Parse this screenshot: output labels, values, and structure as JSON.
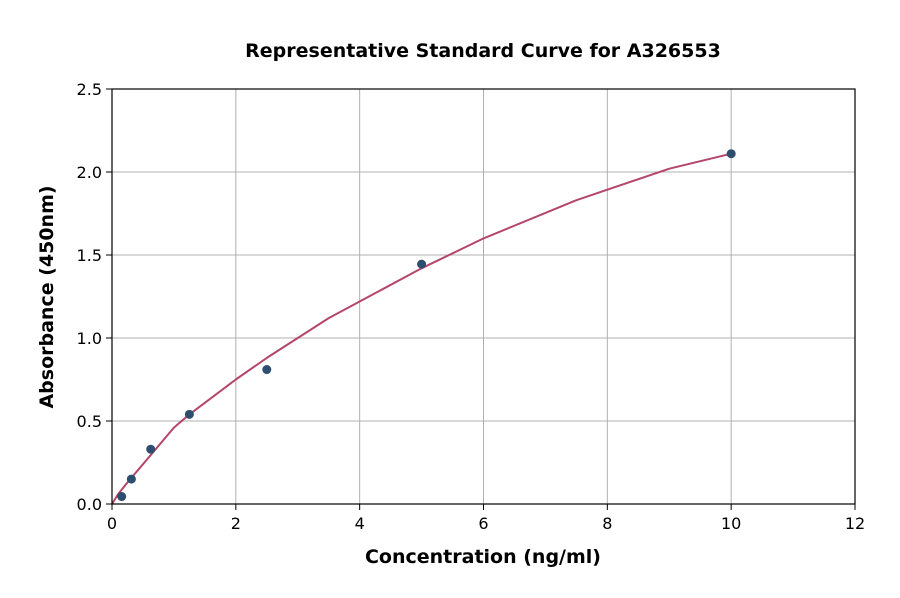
{
  "chart_data": {
    "type": "scatter",
    "title": "Representative Standard Curve for A326553",
    "xlabel": "Concentration (ng/ml)",
    "ylabel": "Absorbance (450nm)",
    "xlim": [
      0,
      12
    ],
    "ylim": [
      0,
      2.5
    ],
    "xticks": [
      "0",
      "2",
      "4",
      "6",
      "8",
      "10",
      "12"
    ],
    "yticks": [
      "0.0",
      "0.5",
      "1.0",
      "1.5",
      "2.0",
      "2.5"
    ],
    "grid": true,
    "points": {
      "x": [
        0.156,
        0.3125,
        0.625,
        1.25,
        2.5,
        5,
        10
      ],
      "y": [
        0.045,
        0.15,
        0.33,
        0.54,
        0.81,
        1.445,
        2.11
      ],
      "color": "#2d4e6e"
    },
    "fit_curve": {
      "x": [
        0,
        0.1,
        0.25,
        0.5,
        1,
        1.25,
        2,
        2.5,
        3.5,
        5,
        6,
        7.5,
        9,
        10
      ],
      "y": [
        0,
        0.06,
        0.13,
        0.24,
        0.46,
        0.54,
        0.75,
        0.88,
        1.12,
        1.42,
        1.6,
        1.83,
        2.02,
        2.11
      ],
      "color": "#b5466a"
    }
  }
}
